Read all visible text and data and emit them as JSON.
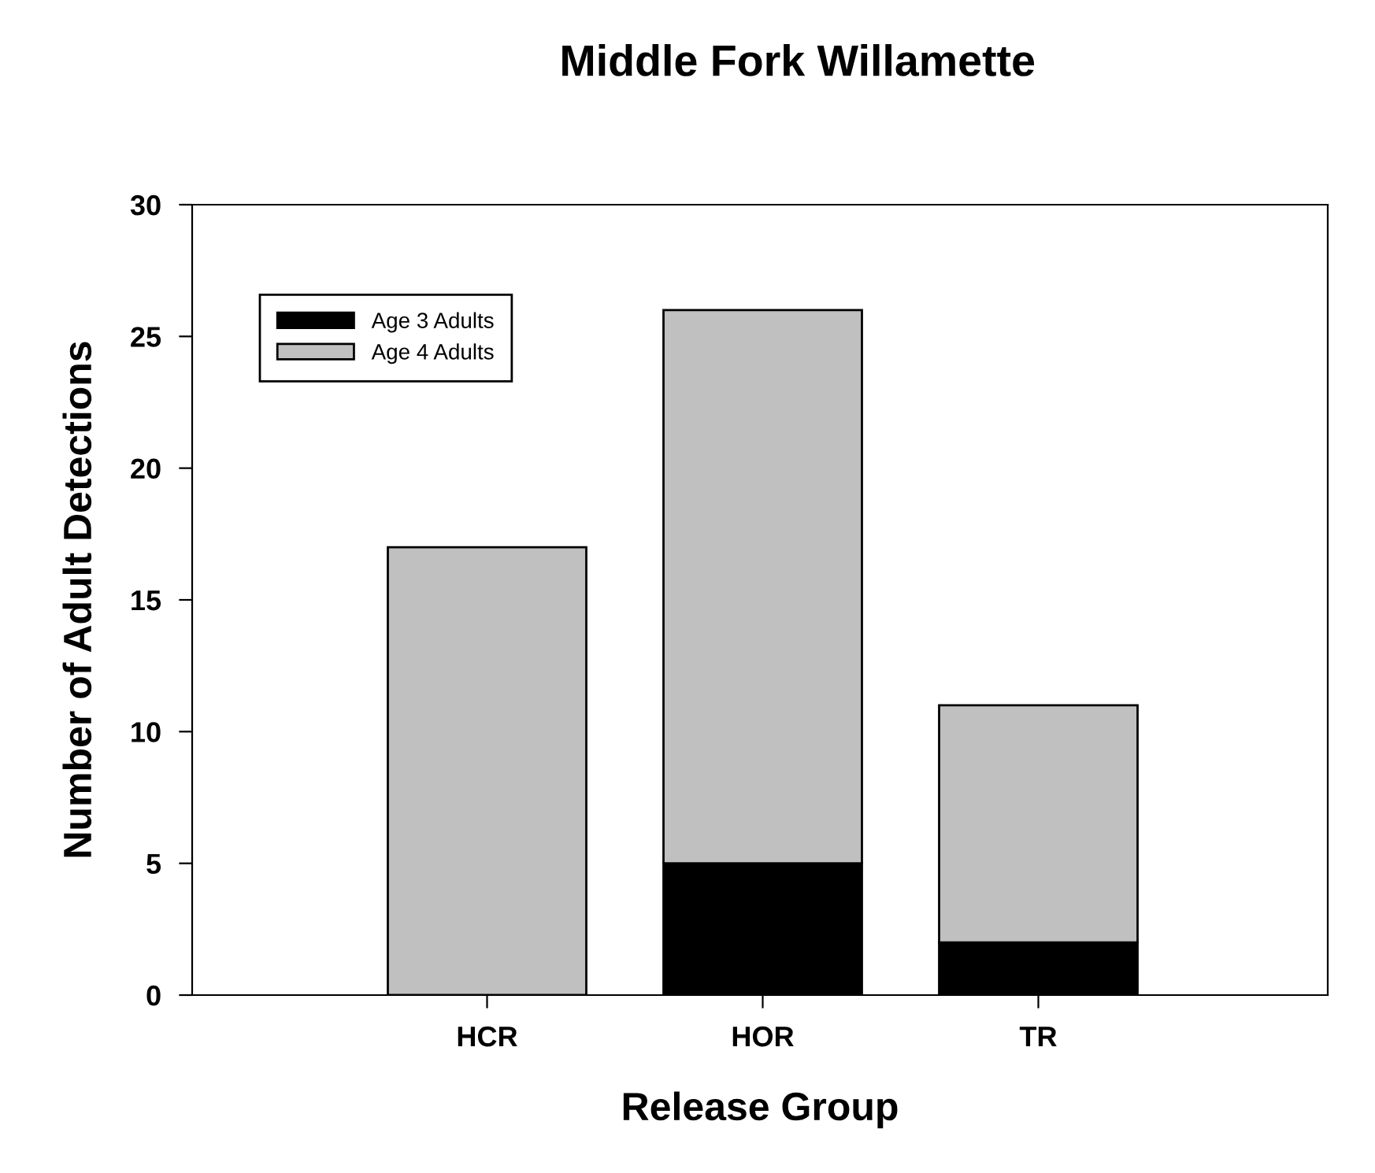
{
  "chart_data": {
    "type": "bar",
    "title": "Middle Fork Willamette",
    "xlabel": "Release Group",
    "ylabel": "Number of Adult Detections",
    "categories": [
      "HCR",
      "HOR",
      "TR"
    ],
    "stacked": true,
    "series": [
      {
        "name": "Age 3 Adults",
        "color": "#000000",
        "values": [
          0,
          5,
          2
        ]
      },
      {
        "name": "Age 4 Adults",
        "color": "#c0c0c0",
        "values": [
          17,
          21,
          9
        ]
      }
    ],
    "ylim": [
      0,
      30
    ],
    "yticks": [
      0,
      5,
      10,
      15,
      20,
      25,
      30
    ],
    "grid": false,
    "legend": "top left"
  }
}
